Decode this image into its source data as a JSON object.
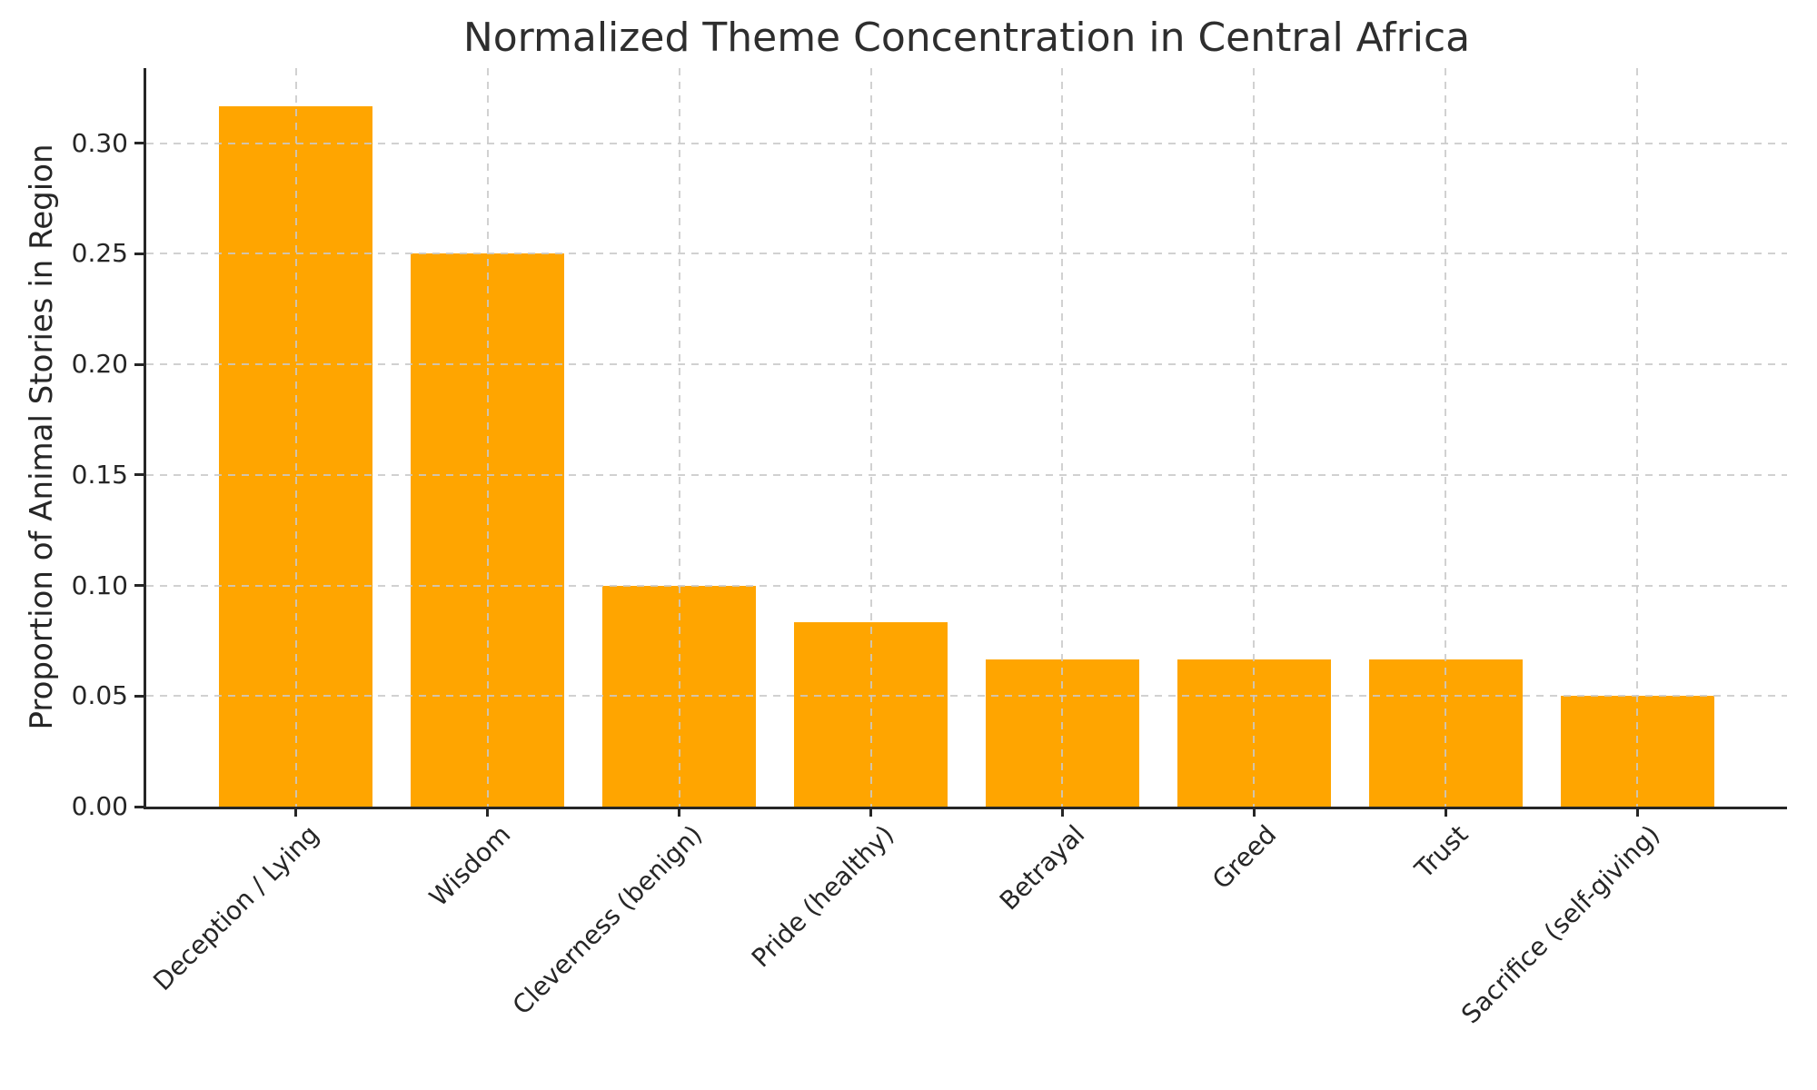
{
  "figure": {
    "background": "#ffffff",
    "text_color": "#262626",
    "spine_color": "#262626"
  },
  "chart_data": {
    "type": "bar",
    "title": "Normalized Theme Concentration in Central Africa",
    "xlabel": "",
    "ylabel": "Proportion of Animal Stories in Region",
    "categories": [
      "Deception / Lying",
      "Wisdom",
      "Cleverness (benign)",
      "Pride (healthy)",
      "Betrayal",
      "Greed",
      "Trust",
      "Sacrifice (self-giving)"
    ],
    "values": [
      0.3167,
      0.25,
      0.1,
      0.0833,
      0.0667,
      0.0667,
      0.0667,
      0.05
    ],
    "bar_color": "#FFA500",
    "ylim": [
      0,
      0.334
    ],
    "yticks": [
      0,
      0.05,
      0.1,
      0.15,
      0.2,
      0.25,
      0.3
    ],
    "ytick_labels": [
      "0.00",
      "0.05",
      "0.10",
      "0.15",
      "0.20",
      "0.25",
      "0.30"
    ],
    "xtick_label_rotation_deg": 45,
    "grid": {
      "style": "dashed",
      "color": "#c9c9c9",
      "axes": "both",
      "above_bars": true
    },
    "legend": null
  }
}
